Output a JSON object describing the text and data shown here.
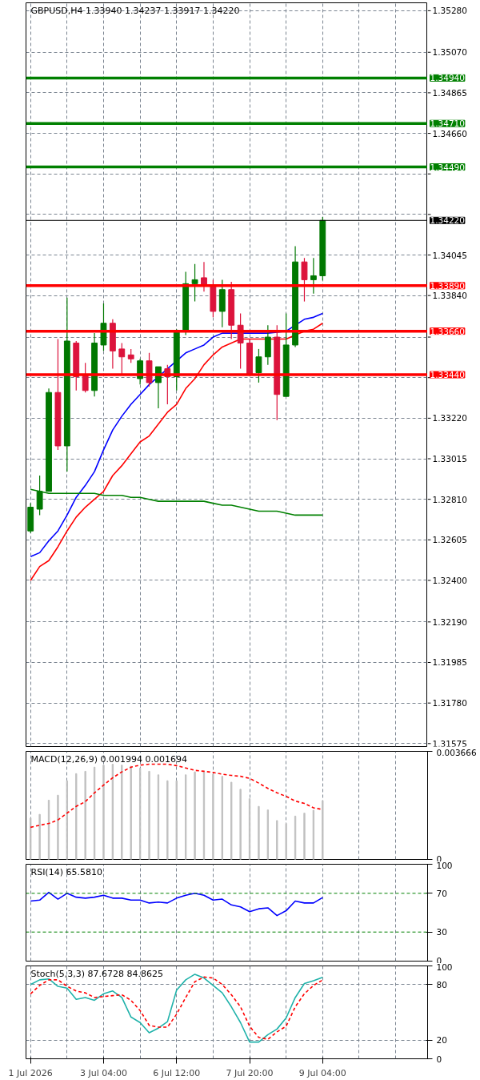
{
  "chart_data": [
    {
      "type": "candlestick",
      "title": "GBPUSD,H4 1.33940 1.34237 1.33917 1.34220",
      "tick_labels": "y",
      "grid": true,
      "categories": [
        null,
        null,
        null,
        null,
        null,
        null,
        null,
        null,
        null,
        null,
        null,
        null,
        null,
        null,
        null,
        null,
        null,
        null,
        null,
        null,
        null,
        null,
        null,
        null,
        null,
        null,
        null,
        null,
        null,
        null,
        null,
        null,
        null,
        null,
        null,
        null,
        null,
        null,
        null,
        null,
        null,
        null,
        null,
        null
      ],
      "ohlc": [
        [
          1.3265,
          1.3279,
          1.3264,
          1.3277
        ],
        [
          1.3276,
          1.3293,
          1.3273,
          1.3285
        ],
        [
          1.3285,
          1.3337,
          1.3285,
          1.3335
        ],
        [
          1.3335,
          1.3362,
          1.3306,
          1.3308
        ],
        [
          1.3308,
          1.3383,
          1.3295,
          1.3361
        ],
        [
          1.336,
          1.3361,
          1.3336,
          1.3343
        ],
        [
          1.3344,
          1.335,
          1.3335,
          1.3336
        ],
        [
          1.3336,
          1.3365,
          1.3333,
          1.336
        ],
        [
          1.3359,
          1.338,
          1.3356,
          1.337
        ],
        [
          1.337,
          1.3372,
          1.3347,
          1.3356
        ],
        [
          1.3357,
          1.336,
          1.3344,
          1.3353
        ],
        [
          1.3354,
          1.3357,
          1.335,
          1.3352
        ],
        [
          1.3342,
          1.3352,
          1.3339,
          1.3351
        ],
        [
          1.3351,
          1.3355,
          1.3338,
          1.334
        ],
        [
          1.334,
          1.3348,
          1.3327,
          1.3348
        ],
        [
          1.3347,
          1.3349,
          1.3329,
          1.3343
        ],
        [
          1.3343,
          1.3367,
          1.3336,
          1.3366
        ],
        [
          1.3366,
          1.3396,
          1.3364,
          1.339
        ],
        [
          1.339,
          1.34,
          1.3381,
          1.3392
        ],
        [
          1.3393,
          1.3401,
          1.3386,
          1.3389
        ],
        [
          1.3389,
          1.3392,
          1.3373,
          1.3376
        ],
        [
          1.3376,
          1.3392,
          1.3368,
          1.3387
        ],
        [
          1.3387,
          1.3391,
          1.3362,
          1.3369
        ],
        [
          1.3369,
          1.3375,
          1.3347,
          1.336
        ],
        [
          1.336,
          1.3362,
          1.3344,
          1.3344
        ],
        [
          1.3345,
          1.3357,
          1.334,
          1.3353
        ],
        [
          1.3353,
          1.3369,
          1.3349,
          1.3363
        ],
        [
          1.3363,
          1.3369,
          1.3321,
          1.3334
        ],
        [
          1.3333,
          1.3375,
          1.3333,
          1.3359
        ],
        [
          1.3359,
          1.3409,
          1.3358,
          1.3401
        ],
        [
          1.3401,
          1.3403,
          1.3381,
          1.3392
        ],
        [
          1.3392,
          1.3403,
          1.3385,
          1.3394
        ],
        [
          1.3394,
          1.34237,
          1.33917,
          1.3422
        ],
        null,
        null,
        null,
        null,
        null,
        null,
        null,
        null,
        null,
        null,
        null
      ],
      "colors": [
        "#007800",
        "#007800",
        "#007800",
        "#dc143c",
        "#007800",
        "#dc143c",
        "#dc143c",
        "#007800",
        "#007800",
        "#dc143c",
        "#dc143c",
        "#dc143c",
        "#007800",
        "#dc143c",
        "#007800",
        "#dc143c",
        "#007800",
        "#007800",
        "#007800",
        "#dc143c",
        "#dc143c",
        "#007800",
        "#dc143c",
        "#dc143c",
        "#dc143c",
        "#007800",
        "#007800",
        "#dc143c",
        "#007800",
        "#007800",
        "#dc143c",
        "#007800",
        "#007800",
        null,
        null,
        null,
        null,
        null,
        null,
        null,
        null,
        null,
        null,
        null
      ],
      "series": [
        {
          "type": "line",
          "color": "#0000ff",
          "values": [
            1.3252,
            1.3254,
            1.326,
            1.3265,
            1.3273,
            1.3282,
            1.3288,
            1.3295,
            1.3306,
            1.3316,
            1.3323,
            1.3329,
            1.3334,
            1.3339,
            null,
            1.3347,
            null,
            1.3355,
            1.3357,
            1.3359,
            1.3363,
            1.3365,
            1.3365,
            1.3365,
            1.3365,
            1.3365,
            1.3365,
            null,
            1.3366,
            null,
            1.3372,
            1.3373,
            1.3375,
            null,
            null,
            null,
            null,
            null,
            null,
            null,
            null,
            null,
            null,
            null
          ]
        },
        {
          "type": "line",
          "color": "#ff0000",
          "values": [
            1.324,
            1.3247,
            1.325,
            1.3257,
            1.3265,
            1.3272,
            1.3277,
            1.3281,
            1.3285,
            1.3293,
            1.3298,
            1.3304,
            1.331,
            1.3313,
            1.3319,
            1.3325,
            1.3329,
            1.3337,
            1.3342,
            1.3349,
            1.3354,
            1.3358,
            1.336,
            1.3362,
            1.3362,
            1.3362,
            null,
            1.3362,
            1.3362,
            1.3364,
            1.3366,
            1.3367,
            1.337,
            null,
            null,
            null,
            null,
            null,
            null,
            null,
            null,
            null,
            null,
            null
          ]
        },
        {
          "type": "line",
          "color": "#008000",
          "values": [
            1.3286,
            1.3285,
            1.3284,
            1.3284,
            1.3284,
            1.3284,
            1.3284,
            1.3284,
            1.3283,
            1.3283,
            1.3283,
            1.3282,
            1.3282,
            1.3281,
            1.328,
            1.328,
            1.328,
            1.328,
            1.328,
            1.328,
            1.3279,
            1.3278,
            1.3278,
            1.3277,
            1.3276,
            1.3275,
            1.3275,
            1.3275,
            1.3274,
            1.3273,
            1.3273,
            1.3273,
            1.3273,
            null,
            null,
            null,
            null,
            null,
            null,
            null,
            null,
            null,
            null,
            null
          ]
        }
      ],
      "ylim": [
        1.3156,
        1.3532
      ],
      "yticks": [
        {
          "value": 1.3528,
          "label": "1.35280"
        },
        {
          "value": 1.3507,
          "label": "1.35070"
        },
        {
          "value": 1.34865,
          "label": "1.34865"
        },
        {
          "value": 1.3466,
          "label": "1.34660"
        },
        {
          "value": 1.34455,
          "label": null
        },
        {
          "value": 1.3425,
          "label": null
        },
        {
          "value": 1.34045,
          "label": "1.34045"
        },
        {
          "value": 1.3384,
          "label": "1.33840"
        },
        {
          "value": 1.3363,
          "label": null
        },
        {
          "value": 1.33425,
          "label": null
        },
        {
          "value": 1.3322,
          "label": "1.33220"
        },
        {
          "value": 1.33015,
          "label": "1.33015"
        },
        {
          "value": 1.3281,
          "label": "1.32810"
        },
        {
          "value": 1.32605,
          "label": "1.32605"
        },
        {
          "value": 1.324,
          "label": "1.32400"
        },
        {
          "value": 1.3219,
          "label": "1.32190"
        },
        {
          "value": 1.31985,
          "label": "1.31985"
        },
        {
          "value": 1.3178,
          "label": "1.31780"
        },
        {
          "value": 1.31575,
          "label": "1.31575"
        }
      ],
      "ref_lines": [
        {
          "axis": "y",
          "value": 1.3494,
          "label": "1.34940",
          "color": "#008000"
        },
        {
          "axis": "y",
          "value": 1.3471,
          "label": "1.34710",
          "color": "#008000"
        },
        {
          "axis": "y",
          "value": 1.3449,
          "label": "1.34490",
          "color": "#008000"
        },
        {
          "axis": "y",
          "value": 1.3422,
          "label": "1.34220",
          "color": "#000000",
          "line_style": "solid"
        },
        {
          "axis": "y",
          "value": 1.3389,
          "label": "1.33890",
          "color": "#ff0000"
        },
        {
          "axis": "y",
          "value": 1.3366,
          "label": "1.33660",
          "color": "#ff0000"
        },
        {
          "axis": "y",
          "value": 1.3344,
          "label": "1.33440",
          "color": "#ff0000"
        }
      ]
    },
    {
      "type": "bar",
      "title": "MACD(12,26,9) 0.001994 0.001694",
      "tick_labels": "y",
      "grid": "x",
      "categories": [
        null,
        null,
        null,
        null,
        null,
        null,
        null,
        null,
        null,
        null,
        null,
        null,
        null,
        null,
        null,
        null,
        null,
        null,
        null,
        null,
        null,
        null,
        null,
        null,
        null,
        null,
        null,
        null,
        null,
        null,
        null,
        null,
        null,
        null,
        null,
        null,
        null,
        null,
        null,
        null,
        null,
        null,
        null,
        null
      ],
      "series": [
        {
          "type": "bar",
          "color": "#c0c0c0",
          "values": [
            0.0014,
            0.00153,
            0.00201,
            0.00218,
            0.00267,
            0.00291,
            0.00299,
            0.00313,
            0.0032,
            0.00323,
            0.0032,
            0.00316,
            0.0031,
            0.00299,
            0.00287,
            0.00267,
            0.00267,
            0.00287,
            0.00297,
            0.00297,
            0.00289,
            0.00282,
            0.00262,
            0.00238,
            0.00206,
            0.0018,
            0.00168,
            0.00132,
            0.00122,
            0.00147,
            0.00157,
            0.00167,
            0.001994,
            null,
            null,
            null,
            null,
            null,
            null,
            null,
            null,
            null,
            null,
            null
          ]
        },
        {
          "type": "line",
          "color": "#ff0000",
          "line_style": "dashed",
          "values": [
            0.00109,
            0.00116,
            0.00122,
            0.00134,
            0.00157,
            0.0018,
            0.00196,
            0.00226,
            0.00252,
            0.00277,
            0.00297,
            0.00313,
            0.0032,
            0.00323,
            0.00323,
            0.00323,
            0.00318,
            0.0031,
            0.00302,
            0.00299,
            0.00295,
            0.00289,
            0.00285,
            0.00282,
            0.00275,
            0.00259,
            0.00241,
            0.00226,
            0.00214,
            0.00198,
            0.0019,
            0.00175,
            0.001694,
            null,
            null,
            null,
            null,
            null,
            null,
            null,
            null,
            null,
            null,
            null
          ]
        }
      ],
      "ylim": [
        0,
        0.003666
      ],
      "yticks": [
        0,
        0.003666
      ]
    },
    {
      "type": "line",
      "title": "RSI(14) 65.5810",
      "tick_labels": "y",
      "grid": "x",
      "categories": [
        null,
        null,
        null,
        null,
        null,
        null,
        null,
        null,
        null,
        null,
        null,
        null,
        null,
        null,
        null,
        null,
        null,
        null,
        null,
        null,
        null,
        null,
        null,
        null,
        null,
        null,
        null,
        null,
        null,
        null,
        null,
        null,
        null,
        null,
        null,
        null,
        null,
        null,
        null,
        null,
        null,
        null,
        null,
        null
      ],
      "series": [
        {
          "type": "line",
          "color": "#0000ff",
          "values": [
            62,
            63,
            71,
            64,
            70,
            66,
            65,
            66,
            68,
            65,
            65,
            63,
            63,
            60,
            61,
            60,
            65,
            68,
            70,
            68,
            63,
            64,
            58,
            56,
            51,
            54,
            55,
            47,
            52,
            62,
            60,
            60,
            65.581,
            null,
            null,
            null,
            null,
            null,
            null,
            null,
            null,
            null,
            null,
            null
          ]
        }
      ],
      "ylim": [
        0,
        100
      ],
      "yticks": [
        0,
        30,
        70,
        100
      ],
      "ref_lines": [
        {
          "axis": "y",
          "value": 70,
          "color": "#008000",
          "line_style": "dashed"
        },
        {
          "axis": "y",
          "value": 30,
          "color": "#008000",
          "line_style": "dashed"
        }
      ]
    },
    {
      "type": "line",
      "title": "Stoch(5,3,3) 87.6728 84.8625",
      "grid": true,
      "categories": [
        "1 Jul 2026",
        null,
        null,
        null,
        null,
        null,
        null,
        null,
        "3 Jul 04:00",
        null,
        null,
        null,
        null,
        null,
        null,
        null,
        "6 Jul 12:00",
        null,
        null,
        null,
        null,
        null,
        null,
        null,
        "7 Jul 20:00",
        null,
        null,
        null,
        null,
        null,
        null,
        null,
        "9 Jul 04:00",
        null,
        null,
        null,
        null,
        null,
        null,
        null,
        null,
        null,
        null,
        null
      ],
      "series": [
        {
          "type": "line",
          "color": "#20b2aa",
          "values": [
            80,
            85,
            86,
            78,
            76,
            64,
            66,
            63,
            70,
            73,
            66,
            45,
            39,
            28,
            33,
            40,
            74,
            85,
            91,
            87,
            79,
            71,
            56,
            39,
            18,
            18,
            26,
            32,
            44,
            66,
            81,
            84,
            87.6728,
            null,
            null,
            null,
            null,
            null,
            null,
            null,
            null,
            null,
            null,
            null
          ]
        },
        {
          "type": "line",
          "color": "#ff0000",
          "line_style": "dashed",
          "values": [
            70,
            79,
            85,
            85,
            78,
            73,
            71,
            66,
            67,
            68,
            69,
            63,
            52,
            36,
            34,
            34,
            48,
            66,
            83,
            88,
            87,
            80,
            69,
            56,
            35,
            23,
            21,
            29,
            35,
            56,
            70,
            79,
            84.8625,
            null,
            null,
            null,
            null,
            null,
            null,
            null,
            null,
            null,
            null,
            null
          ]
        }
      ],
      "ylim": [
        0,
        100
      ],
      "yticks": [
        0,
        20,
        80,
        100
      ]
    }
  ]
}
